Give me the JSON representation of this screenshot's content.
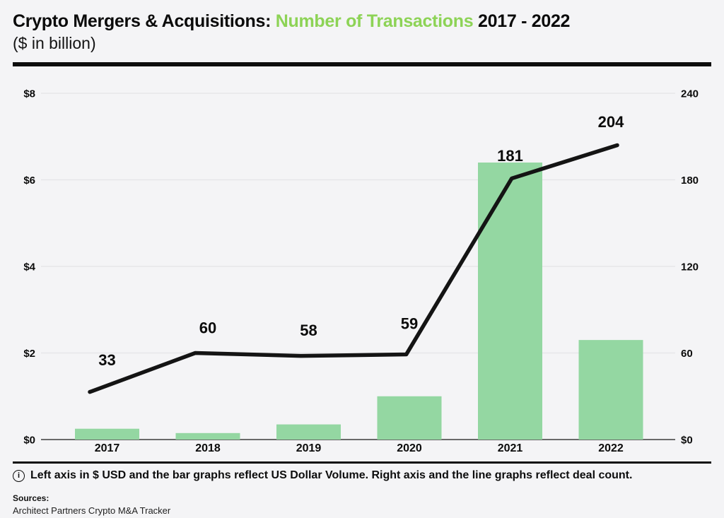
{
  "page": {
    "background": "#f4f4f6"
  },
  "colors": {
    "accent_green": "#8dd356",
    "bar_green": "#94d7a2",
    "line_black": "#141414",
    "gridline": "#e4e4e7",
    "axis_line": "#3c3c3c"
  },
  "header": {
    "title_prefix": "Crypto Mergers & Acquisitions: ",
    "title_highlight": "Number of Transactions",
    "title_suffix": " 2017 - 2022",
    "subtitle": "($ in billion)"
  },
  "chart_data": {
    "type": "bar+line",
    "categories": [
      "2017",
      "2018",
      "2019",
      "2020",
      "2021",
      "2022"
    ],
    "series": [
      {
        "name": "US Dollar Volume",
        "type": "bar",
        "axis": "left",
        "color": "#94d7a2",
        "values": [
          0.25,
          0.15,
          0.35,
          1.0,
          6.4,
          2.3
        ]
      },
      {
        "name": "Deal count",
        "type": "line",
        "axis": "right",
        "color": "#141414",
        "values": [
          33,
          60,
          58,
          59,
          181,
          204
        ],
        "data_labels": [
          "33",
          "60",
          "58",
          "59",
          "181",
          "204"
        ]
      }
    ],
    "left_axis": {
      "min": 0,
      "max": 8,
      "tick_labels": [
        "$8",
        "$6",
        "$4",
        "$2",
        "$0"
      ]
    },
    "right_axis": {
      "min": 0,
      "max": 240,
      "tick_labels": [
        "240",
        "180",
        "120",
        "60",
        "$0"
      ]
    },
    "grid": true,
    "legend": "none"
  },
  "footer": {
    "info_icon": "i",
    "note": "Left axis in $ USD and the bar graphs reflect US Dollar Volume. Right axis and the line graphs reflect deal count.",
    "sources_label": "Sources:",
    "sources_value": "Architect Partners Crypto M&A Tracker"
  }
}
